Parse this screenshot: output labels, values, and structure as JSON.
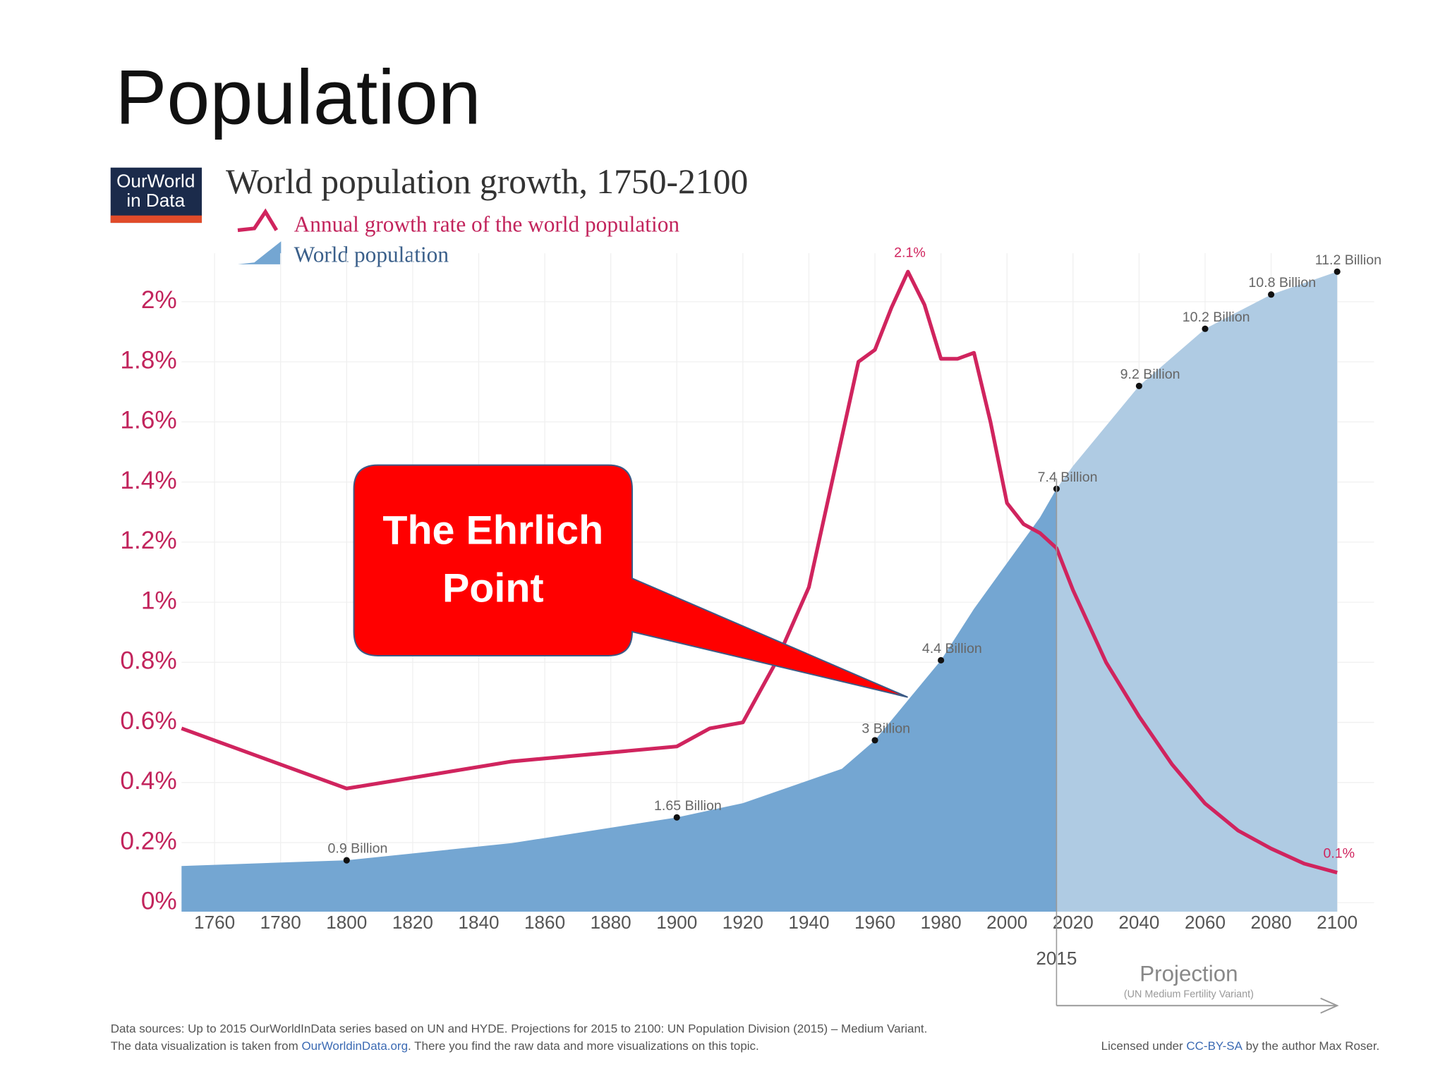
{
  "slide_title": "Population",
  "logo": [
    "OurWorld",
    "in Data"
  ],
  "callout": [
    "The Ehrlich",
    "Point"
  ],
  "chart_data": {
    "type": "line-area",
    "title": "World population growth, 1750-2100",
    "xlim": [
      1750,
      2100
    ],
    "xticks": [
      1760,
      1780,
      1800,
      1820,
      1840,
      1860,
      1880,
      1900,
      1920,
      1940,
      1960,
      1980,
      2000,
      2020,
      2040,
      2060,
      2080,
      2100
    ],
    "ylim": [
      -0.03,
      2.1
    ],
    "yticks": [
      {
        "value": 0,
        "label": "0%"
      },
      {
        "value": 0.2,
        "label": "0.2%"
      },
      {
        "value": 0.4,
        "label": "0.4%"
      },
      {
        "value": 0.6,
        "label": "0.6%"
      },
      {
        "value": 0.8,
        "label": "0.8%"
      },
      {
        "value": 1,
        "label": "1%"
      },
      {
        "value": 1.2,
        "label": "1.2%"
      },
      {
        "value": 1.4,
        "label": "1.4%"
      },
      {
        "value": 1.6,
        "label": "1.6%"
      },
      {
        "value": 1.8,
        "label": "1.8%"
      },
      {
        "value": 2,
        "label": "2%"
      }
    ],
    "y2lim": [
      0,
      11.2
    ],
    "grid": true,
    "tick_color": "#c2245c",
    "projection": {
      "start": 2015,
      "label": "Projection",
      "note": "(UN Medium Fertility Variant)",
      "color": "#afcbe3"
    },
    "series": [
      {
        "name": "Annual growth rate of the world population",
        "type": "line",
        "color": "#d0245e",
        "x": [
          1750,
          1800,
          1850,
          1900,
          1910,
          1920,
          1930,
          1940,
          1950,
          1955,
          1960,
          1965,
          1970,
          1975,
          1980,
          1985,
          1990,
          1995,
          2000,
          2005,
          2010,
          2015,
          2020,
          2030,
          2040,
          2050,
          2060,
          2070,
          2080,
          2090,
          2100
        ],
        "values": [
          0.58,
          0.38,
          0.47,
          0.52,
          0.58,
          0.6,
          0.8,
          1.05,
          1.55,
          1.8,
          1.84,
          1.98,
          2.1,
          1.99,
          1.81,
          1.81,
          1.83,
          1.6,
          1.33,
          1.26,
          1.23,
          1.18,
          1.04,
          0.8,
          0.62,
          0.46,
          0.33,
          0.24,
          0.18,
          0.13,
          0.1
        ],
        "value_labels": [
          null,
          null,
          null,
          null,
          null,
          null,
          null,
          null,
          null,
          null,
          null,
          null,
          "2.1%",
          null,
          null,
          null,
          null,
          null,
          null,
          null,
          null,
          null,
          null,
          null,
          null,
          null,
          null,
          null,
          null,
          null,
          "0.1%"
        ]
      },
      {
        "name": "World population",
        "type": "area",
        "axis": "y2",
        "color": "#74a6d2",
        "x": [
          1750,
          1800,
          1850,
          1900,
          1920,
          1940,
          1950,
          1960,
          1970,
          1980,
          1990,
          2000,
          2010,
          2015,
          2020,
          2030,
          2040,
          2050,
          2060,
          2070,
          2080,
          2090,
          2100
        ],
        "values": [
          0.8,
          0.9,
          1.2,
          1.65,
          1.9,
          2.3,
          2.5,
          3,
          3.7,
          4.4,
          5.3,
          6.1,
          6.9,
          7.4,
          7.8,
          8.5,
          9.2,
          9.7,
          10.2,
          10.5,
          10.8,
          11.0,
          11.2
        ],
        "value_labels": [
          null,
          "0.9 Billion",
          null,
          "1.65 Billion",
          null,
          null,
          null,
          "3 Billion",
          null,
          "4.4 Billion",
          null,
          null,
          null,
          "7.4 Billion",
          null,
          null,
          "9.2 Billion",
          null,
          "10.2 Billion",
          null,
          "10.8 Billion",
          null,
          "11.2 Billion"
        ]
      }
    ],
    "footer": {
      "sources": "Data sources:  Up to 2015 OurWorldInData series based on UN and HYDE. Projections for 2015 to 2100: UN Population Division (2015) – Medium Variant.",
      "visualization": [
        "The data visualization is taken from ",
        "OurWorldinData.org",
        ". There you find the raw data and more visualizations on this topic."
      ],
      "license": [
        "Licensed under ",
        "CC-BY-SA",
        " by the author Max Roser."
      ]
    }
  }
}
